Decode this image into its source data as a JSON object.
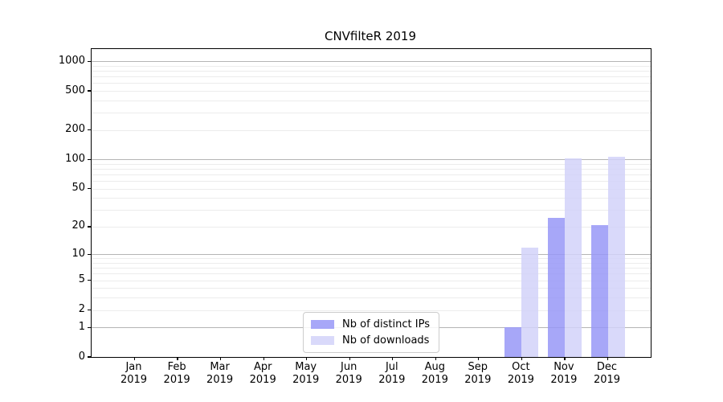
{
  "chart_data": {
    "type": "bar",
    "title": "CNVfilteR 2019",
    "x_axis": {
      "months": [
        "Jan",
        "Feb",
        "Mar",
        "Apr",
        "May",
        "Jun",
        "Jul",
        "Aug",
        "Sep",
        "Oct",
        "Nov",
        "Dec"
      ],
      "year_label": "2019"
    },
    "y_axis": {
      "scale": "log10(value+1)",
      "ticks": [
        0,
        1,
        2,
        5,
        10,
        20,
        50,
        100,
        200,
        500,
        1000
      ],
      "major_gridline_values": [
        1,
        10,
        100,
        1000
      ],
      "minor_gridline_values": [
        2,
        3,
        4,
        5,
        6,
        7,
        8,
        9,
        20,
        30,
        40,
        50,
        60,
        70,
        80,
        90,
        200,
        300,
        400,
        500,
        600,
        700,
        800,
        900
      ],
      "top_value": 1332
    },
    "series": [
      {
        "name": "Nb of distinct IPs",
        "color": "#9898f7",
        "values": [
          0,
          0,
          0,
          0,
          0,
          0,
          0,
          0,
          0,
          1,
          25,
          21
        ]
      },
      {
        "name": "Nb of downloads",
        "color": "#d2d2f9",
        "values": [
          0,
          0,
          0,
          0,
          0,
          0,
          0,
          0,
          0,
          12,
          103,
          106
        ]
      }
    ],
    "legend_position": "lower center",
    "grid": true
  },
  "colors": {
    "major_grid": "#b5b5b5",
    "minor_grid": "#ececec",
    "spine": "#000000",
    "text": "#000000",
    "background": "#ffffff"
  }
}
